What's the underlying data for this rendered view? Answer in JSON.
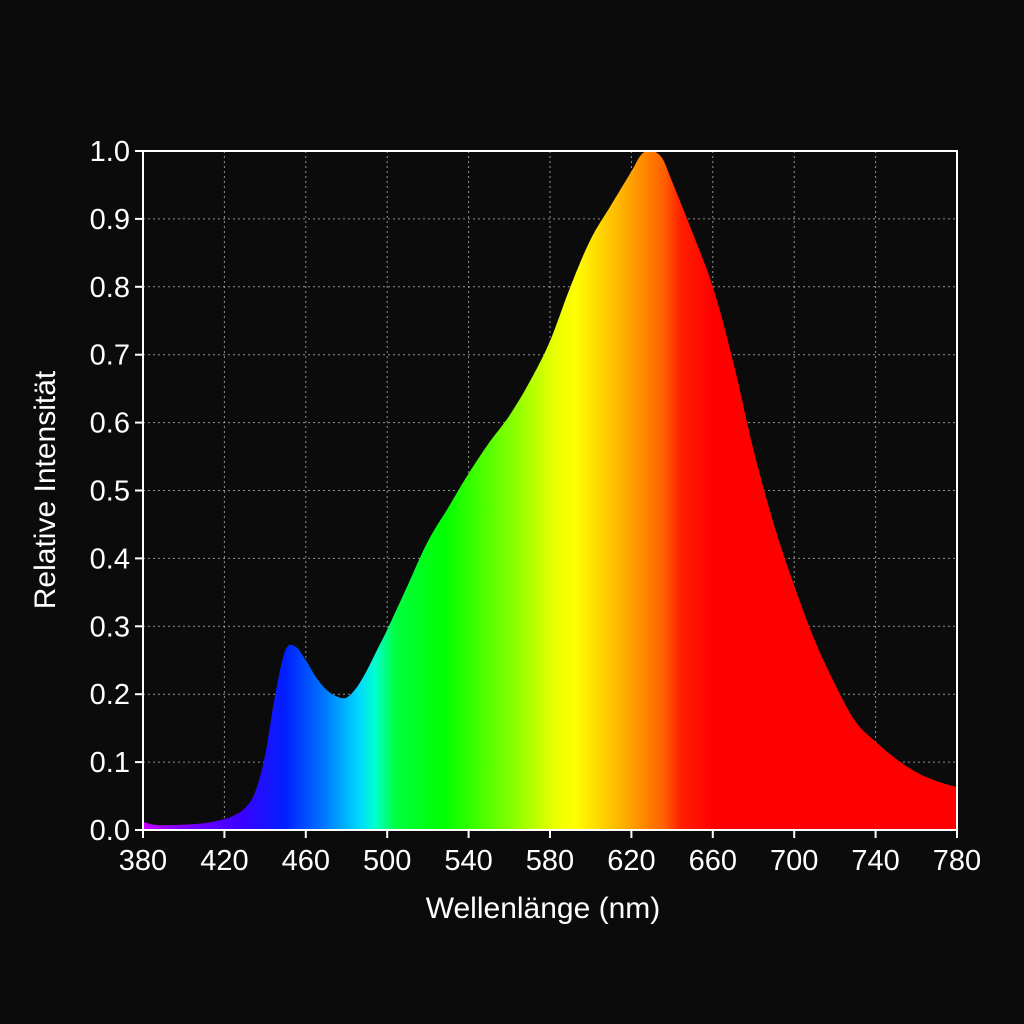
{
  "chart_data": {
    "type": "area",
    "title": "",
    "xlabel": "Wellenlänge (nm)",
    "ylabel": "Relative Intensität",
    "xlim": [
      380,
      780
    ],
    "ylim": [
      0,
      1.0
    ],
    "grid": true,
    "background_color": "#0b0b0b",
    "fill": "visible-spectrum color gradient (violet to red)",
    "x_ticks": [
      380,
      420,
      460,
      500,
      540,
      580,
      620,
      660,
      700,
      740,
      780
    ],
    "x_tick_labels": [
      "380",
      "420",
      "460",
      "500",
      "540",
      "580",
      "620",
      "660",
      "700",
      "740",
      "780"
    ],
    "y_ticks": [
      0,
      0.1,
      0.2,
      0.3,
      0.4,
      0.5,
      0.6,
      0.7,
      0.8,
      0.9,
      1.0
    ],
    "y_tick_labels": [
      "0.0",
      "0.1",
      "0.2",
      "0.3",
      "0.4",
      "0.5",
      "0.6",
      "0.7",
      "0.8",
      "0.9",
      "1.0"
    ],
    "series": [
      {
        "x": [
          380,
          385,
          390,
          400,
          410,
          420,
          425,
          430,
          435,
          440,
          445,
          450,
          455,
          460,
          465,
          470,
          475,
          480,
          485,
          490,
          495,
          500,
          510,
          520,
          530,
          540,
          550,
          560,
          570,
          580,
          590,
          600,
          610,
          620,
          625,
          630,
          635,
          640,
          650,
          660,
          670,
          680,
          690,
          700,
          710,
          720,
          730,
          740,
          750,
          760,
          770,
          780
        ],
        "values": [
          0.012,
          0.008,
          0.007,
          0.008,
          0.01,
          0.016,
          0.022,
          0.032,
          0.055,
          0.11,
          0.2,
          0.265,
          0.27,
          0.25,
          0.225,
          0.207,
          0.197,
          0.195,
          0.21,
          0.235,
          0.265,
          0.295,
          0.36,
          0.425,
          0.475,
          0.525,
          0.57,
          0.61,
          0.66,
          0.72,
          0.8,
          0.87,
          0.92,
          0.97,
          0.995,
          1.0,
          0.99,
          0.955,
          0.88,
          0.8,
          0.69,
          0.56,
          0.45,
          0.36,
          0.28,
          0.215,
          0.16,
          0.13,
          0.105,
          0.085,
          0.072,
          0.063
        ]
      }
    ]
  }
}
